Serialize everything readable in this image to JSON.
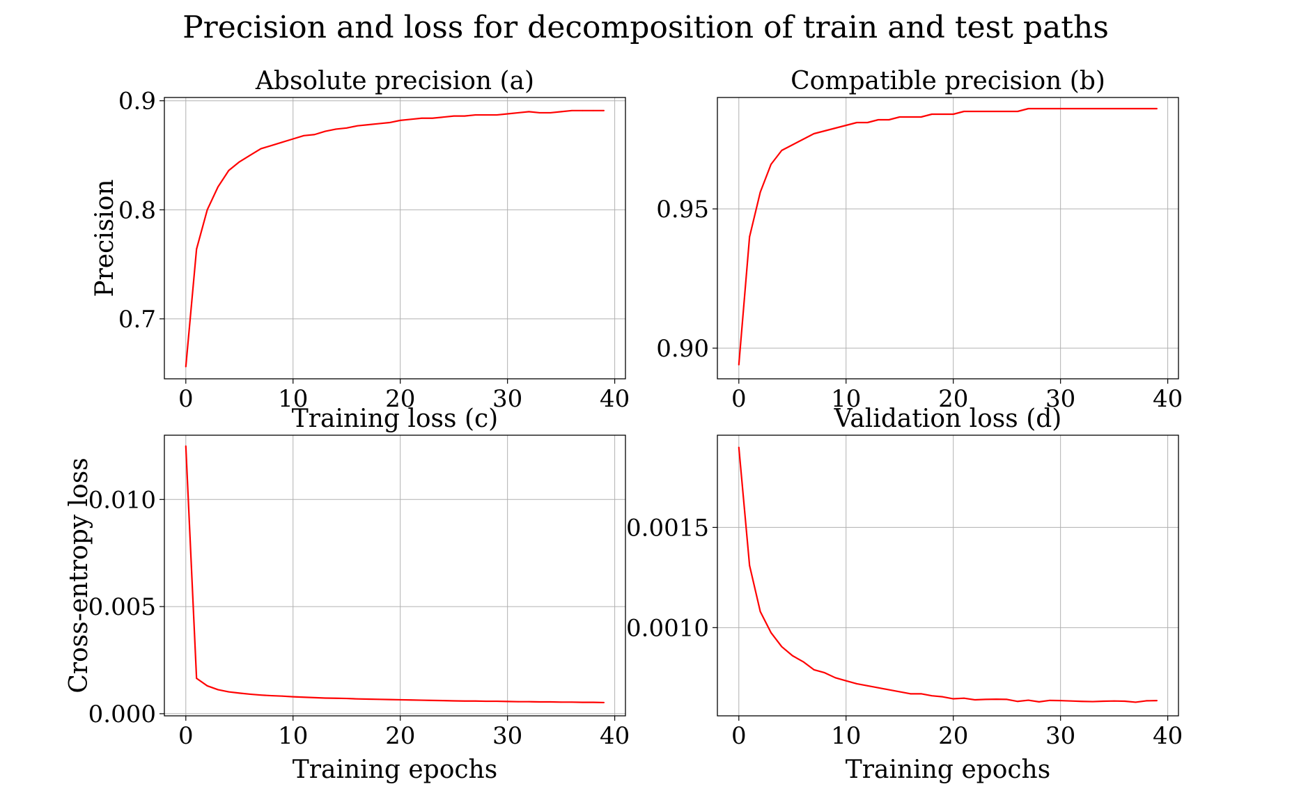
{
  "figure": {
    "suptitle": "Precision and loss for decomposition of train and test paths",
    "colors": {
      "line": "#ff0000",
      "grid": "#b0b0b0",
      "axes": "#000000"
    }
  },
  "chart_data": [
    {
      "type": "line",
      "title": "Absolute precision (a)",
      "xlabel": "",
      "ylabel": "Precision",
      "xlim": [
        -2,
        41
      ],
      "ylim": [
        0.645,
        0.903
      ],
      "xticks": [
        0,
        10,
        20,
        30,
        40
      ],
      "yticks": [
        0.7,
        0.8,
        0.9
      ],
      "ytick_labels": [
        "0.7",
        "0.8",
        "0.9"
      ],
      "grid": true,
      "x": [
        0,
        1,
        2,
        3,
        4,
        5,
        6,
        7,
        8,
        9,
        10,
        11,
        12,
        13,
        14,
        15,
        16,
        17,
        18,
        19,
        20,
        21,
        22,
        23,
        24,
        25,
        26,
        27,
        28,
        29,
        30,
        31,
        32,
        33,
        34,
        35,
        36,
        37,
        38,
        39
      ],
      "series": [
        {
          "color": "#ff0000",
          "values": [
            0.656,
            0.764,
            0.8,
            0.821,
            0.836,
            0.844,
            0.85,
            0.856,
            0.859,
            0.862,
            0.865,
            0.868,
            0.869,
            0.872,
            0.874,
            0.875,
            0.877,
            0.878,
            0.879,
            0.88,
            0.882,
            0.883,
            0.884,
            0.884,
            0.885,
            0.886,
            0.886,
            0.887,
            0.887,
            0.887,
            0.888,
            0.889,
            0.89,
            0.889,
            0.889,
            0.89,
            0.891,
            0.891,
            0.891,
            0.891
          ]
        }
      ]
    },
    {
      "type": "line",
      "title": "Compatible precision (b)",
      "xlabel": "",
      "ylabel": "",
      "xlim": [
        -2,
        41
      ],
      "ylim": [
        0.889,
        0.99
      ],
      "xticks": [
        0,
        10,
        20,
        30,
        40
      ],
      "yticks": [
        0.9,
        0.95
      ],
      "ytick_labels": [
        "0.90",
        "0.95"
      ],
      "grid": true,
      "x": [
        0,
        1,
        2,
        3,
        4,
        5,
        6,
        7,
        8,
        9,
        10,
        11,
        12,
        13,
        14,
        15,
        16,
        17,
        18,
        19,
        20,
        21,
        22,
        23,
        24,
        25,
        26,
        27,
        28,
        29,
        30,
        31,
        32,
        33,
        34,
        35,
        36,
        37,
        38,
        39
      ],
      "series": [
        {
          "color": "#ff0000",
          "values": [
            0.894,
            0.94,
            0.956,
            0.966,
            0.971,
            0.973,
            0.975,
            0.977,
            0.978,
            0.979,
            0.98,
            0.981,
            0.981,
            0.982,
            0.982,
            0.983,
            0.983,
            0.983,
            0.984,
            0.984,
            0.984,
            0.985,
            0.985,
            0.985,
            0.985,
            0.985,
            0.985,
            0.986,
            0.986,
            0.986,
            0.986,
            0.986,
            0.986,
            0.986,
            0.986,
            0.986,
            0.986,
            0.986,
            0.986,
            0.986
          ]
        }
      ]
    },
    {
      "type": "line",
      "title": "Training loss (c)",
      "xlabel": "Training epochs",
      "ylabel": "Cross-entropy loss",
      "xlim": [
        -2,
        41
      ],
      "ylim": [
        -0.0001,
        0.013
      ],
      "xticks": [
        0,
        10,
        20,
        30,
        40
      ],
      "yticks": [
        0.0,
        0.005,
        0.01
      ],
      "ytick_labels": [
        "0.000",
        "0.005",
        "0.010"
      ],
      "grid": true,
      "x": [
        0,
        1,
        2,
        3,
        4,
        5,
        6,
        7,
        8,
        9,
        10,
        11,
        12,
        13,
        14,
        15,
        16,
        17,
        18,
        19,
        20,
        21,
        22,
        23,
        24,
        25,
        26,
        27,
        28,
        29,
        30,
        31,
        32,
        33,
        34,
        35,
        36,
        37,
        38,
        39
      ],
      "series": [
        {
          "color": "#ff0000",
          "values": [
            0.0125,
            0.00165,
            0.0013,
            0.00112,
            0.00102,
            0.00096,
            0.00091,
            0.00087,
            0.00084,
            0.00082,
            0.00079,
            0.00077,
            0.00075,
            0.00073,
            0.00072,
            0.00071,
            0.00069,
            0.00068,
            0.00067,
            0.00066,
            0.00065,
            0.00064,
            0.00063,
            0.00062,
            0.00061,
            0.0006,
            0.00059,
            0.00059,
            0.00058,
            0.00058,
            0.00057,
            0.00056,
            0.00056,
            0.00055,
            0.00055,
            0.00054,
            0.00054,
            0.00053,
            0.00053,
            0.00052
          ]
        }
      ]
    },
    {
      "type": "line",
      "title": "Validation loss (d)",
      "xlabel": "Training epochs",
      "ylabel": "",
      "xlim": [
        -2,
        41
      ],
      "ylim": [
        0.00056,
        0.00196
      ],
      "xticks": [
        0,
        10,
        20,
        30,
        40
      ],
      "yticks": [
        0.001,
        0.0015
      ],
      "ytick_labels": [
        "0.0010",
        "0.0015"
      ],
      "grid": true,
      "x": [
        0,
        1,
        2,
        3,
        4,
        5,
        6,
        7,
        8,
        9,
        10,
        11,
        12,
        13,
        14,
        15,
        16,
        17,
        18,
        19,
        20,
        21,
        22,
        23,
        24,
        25,
        26,
        27,
        28,
        29,
        30,
        31,
        32,
        33,
        34,
        35,
        36,
        37,
        38,
        39
      ],
      "series": [
        {
          "color": "#ff0000",
          "values": [
            0.0019,
            0.00131,
            0.00108,
            0.000975,
            0.000905,
            0.00086,
            0.00083,
            0.00079,
            0.000775,
            0.00075,
            0.000735,
            0.00072,
            0.00071,
            0.0007,
            0.00069,
            0.00068,
            0.00067,
            0.00067,
            0.00066,
            0.000655,
            0.000645,
            0.000648,
            0.00064,
            0.000642,
            0.000643,
            0.000642,
            0.000632,
            0.000638,
            0.00063,
            0.000637,
            0.000636,
            0.000634,
            0.000632,
            0.000631,
            0.000633,
            0.000634,
            0.000633,
            0.000628,
            0.000635,
            0.000636
          ]
        }
      ]
    }
  ]
}
